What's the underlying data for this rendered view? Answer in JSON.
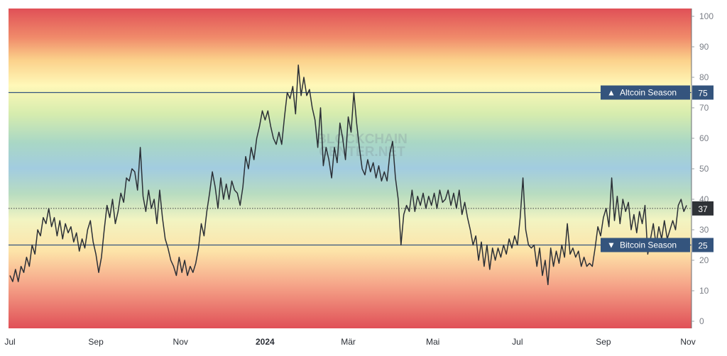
{
  "chart_data": {
    "type": "line",
    "title": "",
    "xlabel": "",
    "ylabel": "",
    "ylim": [
      0,
      100
    ],
    "y_ticks": [
      0,
      10,
      20,
      30,
      40,
      50,
      60,
      70,
      80,
      90,
      100
    ],
    "x_ticks": [
      {
        "label": "Jul",
        "pos": 0
      },
      {
        "label": "Sep",
        "pos": 62
      },
      {
        "label": "Nov",
        "pos": 123
      },
      {
        "label": "2024",
        "pos": 184,
        "bold": true
      },
      {
        "label": "Mär",
        "pos": 244
      },
      {
        "label": "Mai",
        "pos": 305
      },
      {
        "label": "Jul",
        "pos": 366
      },
      {
        "label": "Sep",
        "pos": 428
      },
      {
        "label": "Nov",
        "pos": 489
      }
    ],
    "current_value": "37",
    "thresholds": [
      {
        "name": "Altcoin Season",
        "value": 75,
        "label": "75",
        "marker": "▲",
        "color": "#34547d"
      },
      {
        "name": "Bitcoin Season",
        "value": 25,
        "label": "25",
        "marker": "▼",
        "color": "#34547d"
      }
    ],
    "watermark": "BLOCKCHAIN CENTER.NET",
    "series": [
      {
        "values": [
          [
            0,
            15
          ],
          [
            2,
            13
          ],
          [
            4,
            17
          ],
          [
            6,
            13
          ],
          [
            8,
            18
          ],
          [
            10,
            16
          ],
          [
            12,
            21
          ],
          [
            14,
            18
          ],
          [
            16,
            25
          ],
          [
            18,
            22
          ],
          [
            20,
            30
          ],
          [
            22,
            28
          ],
          [
            24,
            34
          ],
          [
            26,
            32
          ],
          [
            28,
            37
          ],
          [
            30,
            31
          ],
          [
            32,
            34
          ],
          [
            34,
            28
          ],
          [
            36,
            33
          ],
          [
            38,
            27
          ],
          [
            40,
            32
          ],
          [
            42,
            29
          ],
          [
            44,
            31
          ],
          [
            46,
            26
          ],
          [
            48,
            29
          ],
          [
            50,
            23
          ],
          [
            52,
            27
          ],
          [
            54,
            24
          ],
          [
            56,
            30
          ],
          [
            58,
            33
          ],
          [
            60,
            26
          ],
          [
            62,
            22
          ],
          [
            64,
            16
          ],
          [
            66,
            21
          ],
          [
            68,
            30
          ],
          [
            70,
            38
          ],
          [
            72,
            34
          ],
          [
            74,
            40
          ],
          [
            76,
            32
          ],
          [
            78,
            36
          ],
          [
            80,
            42
          ],
          [
            82,
            39
          ],
          [
            84,
            47
          ],
          [
            86,
            46
          ],
          [
            88,
            50
          ],
          [
            90,
            49
          ],
          [
            92,
            43
          ],
          [
            94,
            57
          ],
          [
            96,
            41
          ],
          [
            98,
            36
          ],
          [
            100,
            43
          ],
          [
            102,
            37
          ],
          [
            104,
            40
          ],
          [
            106,
            32
          ],
          [
            108,
            43
          ],
          [
            110,
            34
          ],
          [
            112,
            27
          ],
          [
            114,
            24
          ],
          [
            116,
            20
          ],
          [
            118,
            18
          ],
          [
            120,
            15
          ],
          [
            122,
            21
          ],
          [
            124,
            16
          ],
          [
            126,
            20
          ],
          [
            128,
            15
          ],
          [
            130,
            18
          ],
          [
            132,
            16
          ],
          [
            134,
            19
          ],
          [
            136,
            24
          ],
          [
            138,
            32
          ],
          [
            140,
            28
          ],
          [
            142,
            36
          ],
          [
            144,
            42
          ],
          [
            146,
            49
          ],
          [
            148,
            44
          ],
          [
            150,
            37
          ],
          [
            152,
            47
          ],
          [
            154,
            40
          ],
          [
            156,
            45
          ],
          [
            158,
            40
          ],
          [
            160,
            46
          ],
          [
            162,
            43
          ],
          [
            164,
            42
          ],
          [
            166,
            38
          ],
          [
            168,
            44
          ],
          [
            170,
            54
          ],
          [
            172,
            50
          ],
          [
            174,
            57
          ],
          [
            176,
            53
          ],
          [
            178,
            60
          ],
          [
            180,
            64
          ],
          [
            182,
            69
          ],
          [
            184,
            66
          ],
          [
            186,
            69
          ],
          [
            188,
            64
          ],
          [
            190,
            60
          ],
          [
            192,
            58
          ],
          [
            194,
            62
          ],
          [
            196,
            58
          ],
          [
            198,
            67
          ],
          [
            200,
            75
          ],
          [
            202,
            73
          ],
          [
            204,
            77
          ],
          [
            206,
            68
          ],
          [
            208,
            84
          ],
          [
            210,
            74
          ],
          [
            212,
            80
          ],
          [
            214,
            74
          ],
          [
            216,
            76
          ],
          [
            218,
            70
          ],
          [
            220,
            66
          ],
          [
            222,
            57
          ],
          [
            224,
            70
          ],
          [
            226,
            51
          ],
          [
            228,
            57
          ],
          [
            230,
            53
          ],
          [
            232,
            47
          ],
          [
            234,
            57
          ],
          [
            236,
            52
          ],
          [
            238,
            65
          ],
          [
            240,
            60
          ],
          [
            242,
            53
          ],
          [
            244,
            67
          ],
          [
            246,
            62
          ],
          [
            248,
            75
          ],
          [
            250,
            65
          ],
          [
            252,
            57
          ],
          [
            254,
            50
          ],
          [
            256,
            48
          ],
          [
            258,
            53
          ],
          [
            260,
            49
          ],
          [
            262,
            52
          ],
          [
            264,
            47
          ],
          [
            266,
            51
          ],
          [
            268,
            46
          ],
          [
            270,
            49
          ],
          [
            272,
            46
          ],
          [
            274,
            55
          ],
          [
            276,
            59
          ],
          [
            278,
            47
          ],
          [
            280,
            40
          ],
          [
            282,
            25
          ],
          [
            284,
            35
          ],
          [
            286,
            38
          ],
          [
            288,
            36
          ],
          [
            290,
            43
          ],
          [
            292,
            36
          ],
          [
            294,
            41
          ],
          [
            296,
            38
          ],
          [
            298,
            42
          ],
          [
            300,
            37
          ],
          [
            302,
            41
          ],
          [
            304,
            38
          ],
          [
            306,
            42
          ],
          [
            308,
            37
          ],
          [
            310,
            43
          ],
          [
            312,
            39
          ],
          [
            314,
            40
          ],
          [
            316,
            43
          ],
          [
            318,
            38
          ],
          [
            320,
            42
          ],
          [
            322,
            37
          ],
          [
            324,
            43
          ],
          [
            326,
            35
          ],
          [
            328,
            39
          ],
          [
            330,
            34
          ],
          [
            332,
            30
          ],
          [
            334,
            25
          ],
          [
            336,
            28
          ],
          [
            338,
            20
          ],
          [
            340,
            26
          ],
          [
            342,
            18
          ],
          [
            344,
            25
          ],
          [
            346,
            17
          ],
          [
            348,
            24
          ],
          [
            350,
            20
          ],
          [
            352,
            24
          ],
          [
            354,
            21
          ],
          [
            356,
            25
          ],
          [
            358,
            22
          ],
          [
            360,
            27
          ],
          [
            362,
            24
          ],
          [
            364,
            28
          ],
          [
            366,
            25
          ],
          [
            368,
            34
          ],
          [
            370,
            47
          ],
          [
            372,
            30
          ],
          [
            374,
            25
          ],
          [
            376,
            24
          ],
          [
            378,
            25
          ],
          [
            380,
            18
          ],
          [
            382,
            24
          ],
          [
            384,
            15
          ],
          [
            386,
            20
          ],
          [
            388,
            12
          ],
          [
            390,
            24
          ],
          [
            392,
            18
          ],
          [
            394,
            23
          ],
          [
            396,
            19
          ],
          [
            398,
            25
          ],
          [
            400,
            21
          ],
          [
            402,
            32
          ],
          [
            404,
            22
          ],
          [
            406,
            24
          ],
          [
            408,
            21
          ],
          [
            410,
            23
          ],
          [
            412,
            18
          ],
          [
            414,
            21
          ],
          [
            416,
            18
          ],
          [
            418,
            19
          ],
          [
            420,
            18
          ],
          [
            422,
            24
          ],
          [
            424,
            31
          ],
          [
            426,
            28
          ],
          [
            428,
            34
          ],
          [
            430,
            37
          ],
          [
            432,
            31
          ],
          [
            434,
            47
          ],
          [
            436,
            33
          ],
          [
            438,
            41
          ],
          [
            440,
            32
          ],
          [
            442,
            40
          ],
          [
            444,
            36
          ],
          [
            446,
            39
          ],
          [
            448,
            30
          ],
          [
            450,
            35
          ],
          [
            452,
            29
          ],
          [
            454,
            36
          ],
          [
            456,
            32
          ],
          [
            458,
            38
          ],
          [
            460,
            22
          ],
          [
            462,
            27
          ],
          [
            464,
            32
          ],
          [
            466,
            25
          ],
          [
            468,
            31
          ],
          [
            470,
            27
          ],
          [
            472,
            33
          ],
          [
            474,
            27
          ],
          [
            476,
            30
          ],
          [
            478,
            33
          ],
          [
            480,
            30
          ],
          [
            482,
            38
          ],
          [
            484,
            40
          ],
          [
            486,
            36
          ],
          [
            488,
            38
          ]
        ]
      }
    ],
    "x_range": [
      0,
      490
    ],
    "grid": false,
    "legend": "none"
  }
}
